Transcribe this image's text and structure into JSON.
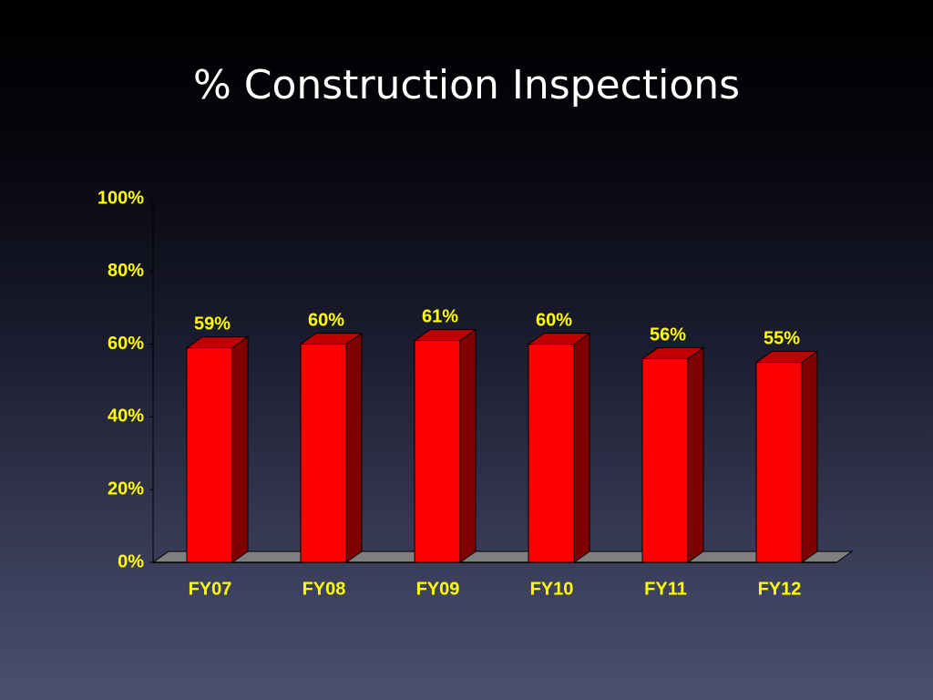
{
  "chart_data": {
    "type": "bar",
    "title": "% Construction Inspections",
    "categories": [
      "FY07",
      "FY08",
      "FY09",
      "FY10",
      "FY11",
      "FY12"
    ],
    "values": [
      59,
      60,
      61,
      60,
      56,
      55
    ],
    "value_labels": [
      "59%",
      "60%",
      "61%",
      "60%",
      "56%",
      "55%"
    ],
    "color": "#ff0000",
    "ylim": [
      0,
      100
    ],
    "yticks": [
      {
        "value": 0,
        "label": "0%"
      },
      {
        "value": 20,
        "label": "20%"
      },
      {
        "value": 40,
        "label": "40%"
      },
      {
        "value": 60,
        "label": "60%"
      },
      {
        "value": 80,
        "label": "80%"
      },
      {
        "value": 100,
        "label": "100%"
      }
    ]
  }
}
